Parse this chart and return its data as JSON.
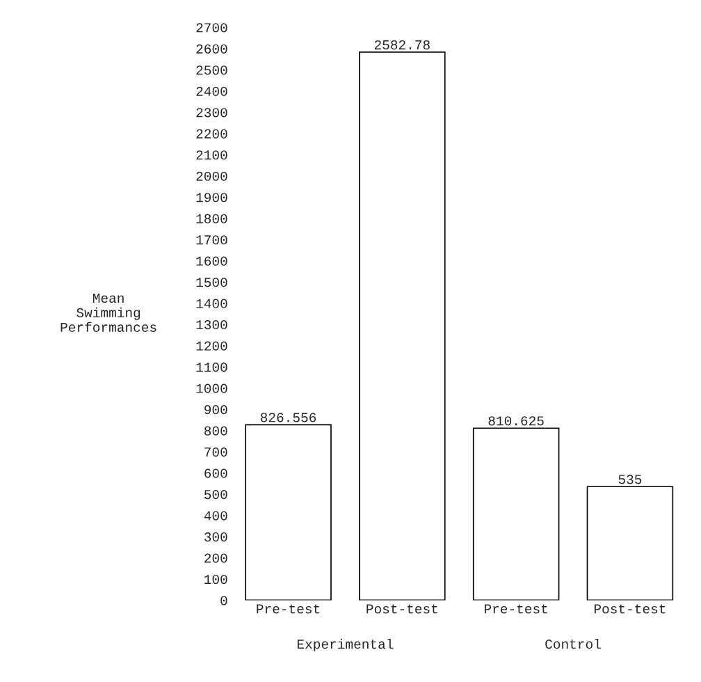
{
  "chart_data": {
    "type": "bar",
    "ylabel": "Mean\nSwimming\nPerformances",
    "categories": [
      "Pre-test",
      "Post-test",
      "Pre-test",
      "Post-test"
    ],
    "values": [
      826.556,
      2582.78,
      810.625,
      535
    ],
    "color": "#000000",
    "data_labels": true,
    "ylim": [
      0,
      2700
    ],
    "yticks": [
      0,
      100,
      200,
      300,
      400,
      500,
      600,
      700,
      800,
      900,
      1000,
      1100,
      1200,
      1300,
      1400,
      1500,
      1600,
      1700,
      1800,
      1900,
      2000,
      2100,
      2200,
      2300,
      2400,
      2500,
      2600,
      2700
    ],
    "annotations": [
      "Experimental",
      "Control"
    ],
    "grid": false,
    "legend": false
  }
}
